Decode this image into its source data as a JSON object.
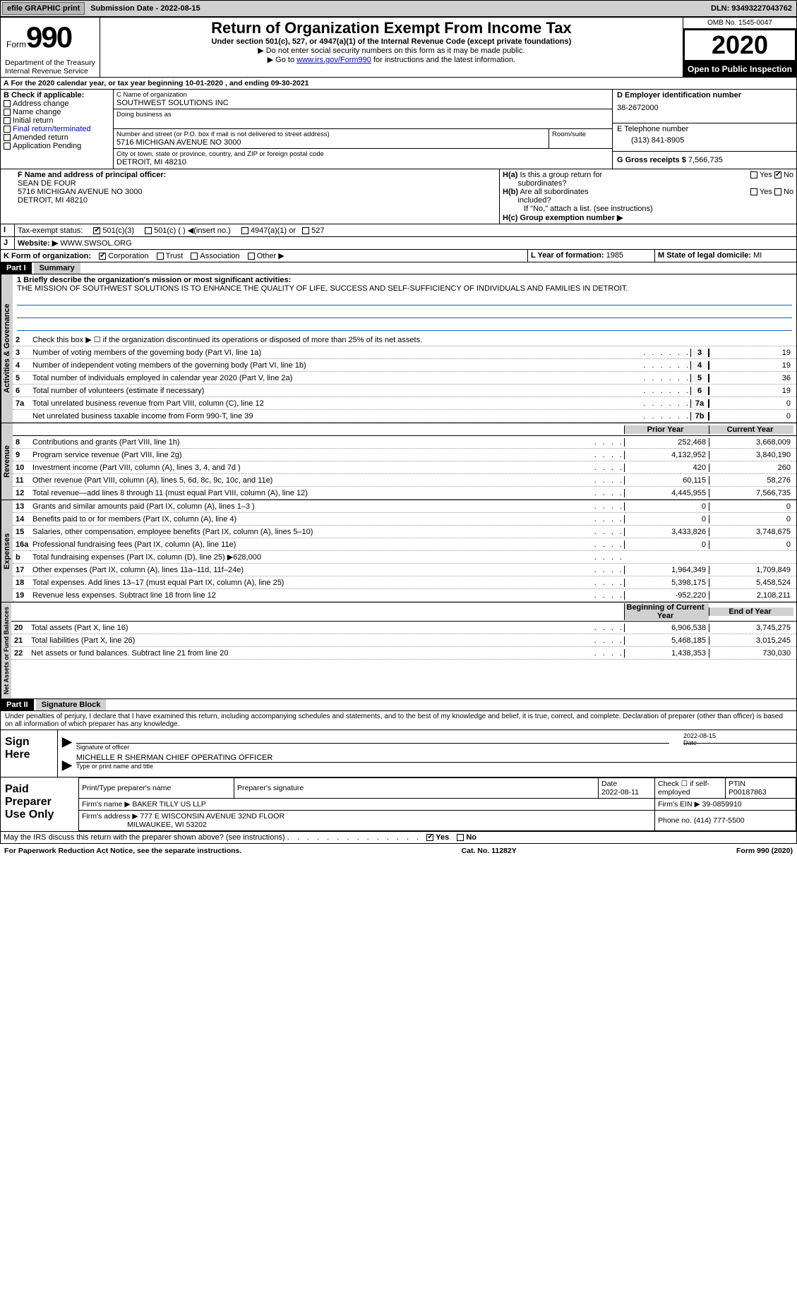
{
  "topbar": {
    "efile": "efile GRAPHIC print",
    "submission_label": "Submission Date - 2022-08-15",
    "dln_label": "DLN: 93493227043762"
  },
  "header": {
    "form_word": "Form",
    "form_no": "990",
    "title": "Return of Organization Exempt From Income Tax",
    "subtitle1": "Under section 501(c), 527, or 4947(a)(1) of the Internal Revenue Code (except private foundations)",
    "subtitle2": "▶ Do not enter social security numbers on this form as it may be made public.",
    "subtitle3_pre": "▶ Go to ",
    "subtitle3_link": "www.irs.gov/Form990",
    "subtitle3_post": " for instructions and the latest information.",
    "omb": "OMB No. 1545-0047",
    "taxyear": "2020",
    "open_public": "Open to Public Inspection",
    "dept1": "Department of the Treasury",
    "dept2": "Internal Revenue Service"
  },
  "lineA": "For the 2020 calendar year, or tax year beginning 10-01-2020    , and ending 09-30-2021",
  "boxB": {
    "label": "B Check if applicable:",
    "opts": [
      "Address change",
      "Name change",
      "Initial return",
      "Final return/terminated",
      "Amended return",
      "Application Pending"
    ]
  },
  "boxC": {
    "name_label": "C Name of organization",
    "name": "SOUTHWEST SOLUTIONS INC",
    "dba_label": "Doing business as",
    "addr_label": "Number and street (or P.O. box if mail is not delivered to street address)",
    "room_label": "Room/suite",
    "addr": "5716 MICHIGAN AVENUE NO 3000",
    "city_label": "City or town, state or province, country, and ZIP or foreign postal code",
    "city": "DETROIT, MI  48210"
  },
  "boxD": {
    "label": "D Employer identification number",
    "val": "38-2672000"
  },
  "boxE": {
    "label": "E Telephone number",
    "val": "(313) 841-8905"
  },
  "boxG": {
    "label": "G Gross receipts $",
    "val": "7,566,735"
  },
  "boxF": {
    "label": "F Name and address of principal officer:",
    "name": "SEAN DE FOUR",
    "addr1": "5716 MICHIGAN AVENUE NO 3000",
    "addr2": "DETROIT, MI  48210"
  },
  "boxH": {
    "a_label": "H(a)  Is this a group return for subordinates?",
    "a_yes": "Yes",
    "a_no": "No",
    "b_label": "H(b)  Are all subordinates included?",
    "b_note": "If \"No,\" attach a list. (see instructions)",
    "c_label": "H(c)  Group exemption number ▶"
  },
  "lineI": {
    "label": "Tax-exempt status:",
    "opts": [
      "501(c)(3)",
      "501(c) (  ) ◀(insert no.)",
      "4947(a)(1) or",
      "527"
    ]
  },
  "lineJ": {
    "label": "Website: ▶",
    "val": "WWW.SWSOL.ORG"
  },
  "lineK": {
    "label": "K Form of organization:",
    "opts": [
      "Corporation",
      "Trust",
      "Association",
      "Other ▶"
    ]
  },
  "lineL": {
    "label": "L Year of formation:",
    "val": "1985"
  },
  "lineM": {
    "label": "M State of legal domicile:",
    "val": "MI"
  },
  "partI": {
    "bar": "Part I",
    "title": "Summary",
    "q1_label": "1  Briefly describe the organization's mission or most significant activities:",
    "mission": "THE MISSION OF SOUTHWEST SOLUTIONS IS TO ENHANCE THE QUALITY OF LIFE, SUCCESS AND SELF-SUFFICIENCY OF INDIVIDUALS AND FAMILIES IN DETROIT.",
    "q2": "Check this box ▶ ☐  if the organization discontinued its operations or disposed of more than 25% of its net assets.",
    "tab_gov": "Activities & Governance",
    "tab_rev": "Revenue",
    "tab_exp": "Expenses",
    "tab_net": "Net Assets or Fund Balances",
    "prior_hdr": "Prior Year",
    "current_hdr": "Current Year",
    "beg_hdr": "Beginning of Current Year",
    "end_hdr": "End of Year",
    "gov_lines": [
      {
        "n": "3",
        "d": "Number of voting members of the governing body (Part VI, line 1a)",
        "box": "3",
        "v": "19"
      },
      {
        "n": "4",
        "d": "Number of independent voting members of the governing body (Part VI, line 1b)",
        "box": "4",
        "v": "19"
      },
      {
        "n": "5",
        "d": "Total number of individuals employed in calendar year 2020 (Part V, line 2a)",
        "box": "5",
        "v": "36"
      },
      {
        "n": "6",
        "d": "Total number of volunteers (estimate if necessary)",
        "box": "6",
        "v": "19"
      },
      {
        "n": "7a",
        "d": "Total unrelated business revenue from Part VIII, column (C), line 12",
        "box": "7a",
        "v": "0"
      },
      {
        "n": "",
        "d": "Net unrelated business taxable income from Form 990-T, line 39",
        "box": "7b",
        "v": "0"
      }
    ],
    "rev_lines": [
      {
        "n": "8",
        "d": "Contributions and grants (Part VIII, line 1h)",
        "p": "252,468",
        "c": "3,668,009"
      },
      {
        "n": "9",
        "d": "Program service revenue (Part VIII, line 2g)",
        "p": "4,132,952",
        "c": "3,840,190"
      },
      {
        "n": "10",
        "d": "Investment income (Part VIII, column (A), lines 3, 4, and 7d )",
        "p": "420",
        "c": "260"
      },
      {
        "n": "11",
        "d": "Other revenue (Part VIII, column (A), lines 5, 6d, 8c, 9c, 10c, and 11e)",
        "p": "60,115",
        "c": "58,276"
      },
      {
        "n": "12",
        "d": "Total revenue—add lines 8 through 11 (must equal Part VIII, column (A), line 12)",
        "p": "4,445,955",
        "c": "7,566,735"
      }
    ],
    "exp_lines": [
      {
        "n": "13",
        "d": "Grants and similar amounts paid (Part IX, column (A), lines 1–3 )",
        "p": "0",
        "c": "0"
      },
      {
        "n": "14",
        "d": "Benefits paid to or for members (Part IX, column (A), line 4)",
        "p": "0",
        "c": "0"
      },
      {
        "n": "15",
        "d": "Salaries, other compensation, employee benefits (Part IX, column (A), lines 5–10)",
        "p": "3,433,826",
        "c": "3,748,675"
      },
      {
        "n": "16a",
        "d": "Professional fundraising fees (Part IX, column (A), line 11e)",
        "p": "0",
        "c": "0"
      },
      {
        "n": "b",
        "d": "Total fundraising expenses (Part IX, column (D), line 25) ▶628,000",
        "p": "",
        "c": "",
        "shade": true
      },
      {
        "n": "17",
        "d": "Other expenses (Part IX, column (A), lines 11a–11d, 11f–24e)",
        "p": "1,964,349",
        "c": "1,709,849"
      },
      {
        "n": "18",
        "d": "Total expenses. Add lines 13–17 (must equal Part IX, column (A), line 25)",
        "p": "5,398,175",
        "c": "5,458,524"
      },
      {
        "n": "19",
        "d": "Revenue less expenses. Subtract line 18 from line 12",
        "p": "-952,220",
        "c": "2,108,211"
      }
    ],
    "net_lines": [
      {
        "n": "20",
        "d": "Total assets (Part X, line 16)",
        "p": "6,906,538",
        "c": "3,745,275"
      },
      {
        "n": "21",
        "d": "Total liabilities (Part X, line 26)",
        "p": "5,468,185",
        "c": "3,015,245"
      },
      {
        "n": "22",
        "d": "Net assets or fund balances. Subtract line 21 from line 20",
        "p": "1,438,353",
        "c": "730,030"
      }
    ]
  },
  "partII": {
    "bar": "Part II",
    "title": "Signature Block",
    "perjury": "Under penalties of perjury, I declare that I have examined this return, including accompanying schedules and statements, and to the best of my knowledge and belief, it is true, correct, and complete. Declaration of preparer (other than officer) is based on all information of which preparer has any knowledge.",
    "sign_here": "Sign Here",
    "sig_officer": "Signature of officer",
    "date_label": "Date",
    "sig_date": "2022-08-15",
    "officer_name": "MICHELLE R SHERMAN  CHIEF OPERATING OFFICER",
    "type_name": "Type or print name and title",
    "paid_prep": "Paid Preparer Use Only",
    "prep_name_hdr": "Print/Type preparer's name",
    "prep_sig_hdr": "Preparer's signature",
    "prep_date_hdr": "Date",
    "prep_date": "2022-08-11",
    "self_emp": "Check ☐ if self-employed",
    "ptin_hdr": "PTIN",
    "ptin": "P00187863",
    "firm_name_label": "Firm's name    ▶",
    "firm_name": "BAKER TILLY US LLP",
    "firm_ein_label": "Firm's EIN ▶",
    "firm_ein": "39-0859910",
    "firm_addr_label": "Firm's address ▶",
    "firm_addr1": "777 E WISCONSIN AVENUE 32ND FLOOR",
    "firm_addr2": "MILWAUKEE, WI  53202",
    "phone_label": "Phone no.",
    "phone": "(414) 777-5500",
    "discuss": "May the IRS discuss this return with the preparer shown above? (see instructions)",
    "yes": "Yes",
    "no": "No"
  },
  "footer": {
    "pra": "For Paperwork Reduction Act Notice, see the separate instructions.",
    "cat": "Cat. No. 11282Y",
    "form": "Form 990 (2020)"
  },
  "colors": {
    "link": "#0000cc",
    "shade": "#d0d0d0",
    "missionline": "#0066cc"
  }
}
